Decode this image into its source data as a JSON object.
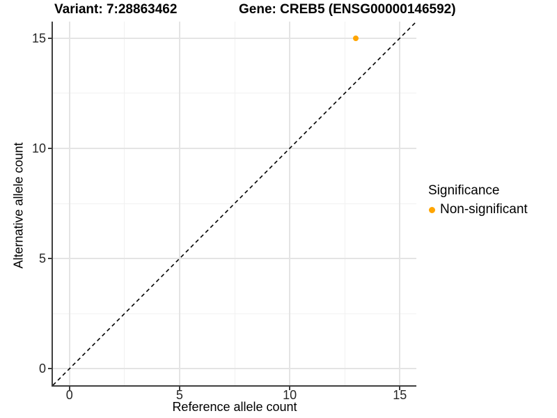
{
  "chart_data": {
    "type": "scatter",
    "title_left": "Variant: 7:28863462",
    "title_right": "Gene: CREB5 (ENSG00000146592)",
    "xlabel": "Reference allele count",
    "ylabel": "Alternative allele count",
    "xlim": [
      -0.75,
      15.75
    ],
    "ylim": [
      -0.75,
      15.75
    ],
    "xticks": [
      0,
      5,
      10,
      15
    ],
    "yticks": [
      0,
      5,
      10,
      15
    ],
    "xminor": [
      2.5,
      7.5,
      12.5
    ],
    "yminor": [
      2.5,
      7.5,
      12.5
    ],
    "grid": "major+minor, light gray on white panel",
    "reference_line": {
      "type": "identity",
      "slope": 1,
      "intercept": 0,
      "style": "dashed",
      "color": "#000000"
    },
    "series": [
      {
        "name": "Non-significant",
        "color": "#FFA500",
        "points": [
          {
            "x": 13,
            "y": 15
          }
        ]
      }
    ],
    "legend": {
      "title": "Significance",
      "position": "right",
      "items": [
        {
          "label": "Non-significant",
          "color": "#FFA500"
        }
      ]
    }
  }
}
